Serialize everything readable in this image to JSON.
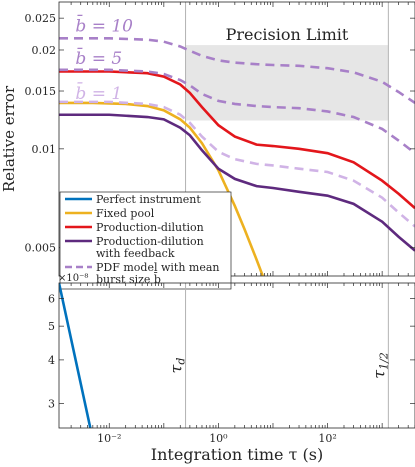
{
  "chart_data": [
    {
      "type": "line",
      "panel": "top",
      "xscale": "log",
      "yscale": "log",
      "xlim": [
        0.0012,
        4000
      ],
      "ylim": [
        0.0041,
        0.028
      ],
      "xticks": [
        0.01,
        1,
        100
      ],
      "xtick_labels": [
        "",
        "",
        ""
      ],
      "yticks": [
        0.005,
        0.01,
        0.015,
        0.02,
        0.025
      ],
      "ytick_labels": [
        "0.005",
        "0.01",
        "0.015",
        "0.02",
        "0.025"
      ],
      "ylabel": "Relative error",
      "xlabel": "",
      "grid": false,
      "vlines": [
        0.25,
        1300
      ],
      "shaded_region": {
        "label": "Precision Limit",
        "x": [
          0.25,
          1300
        ],
        "y": [
          0.0122,
          0.0207
        ]
      },
      "legend": {
        "position": "bottom-left",
        "entries": [
          {
            "label": "Perfect instrument",
            "color": "#0072bd",
            "style": "solid"
          },
          {
            "label": "Fixed pool",
            "color": "#edb120",
            "style": "solid"
          },
          {
            "label": "Production-dilution",
            "color": "#e3161b",
            "style": "solid"
          },
          {
            "label": "Production-dilution\nwith feedback",
            "color": "#5e2a7e",
            "style": "solid"
          },
          {
            "label": "PDF model with mean\nburst size b̄",
            "color": "#a880c8",
            "style": "dashed"
          }
        ]
      },
      "annotations": [
        {
          "text": "b̄ = 10",
          "x": 0.0024,
          "y": 0.0228,
          "color": "#a880c8"
        },
        {
          "text": "b̄ = 5",
          "x": 0.0024,
          "y": 0.0181,
          "color": "#a880c8"
        },
        {
          "text": "b̄ = 1",
          "x": 0.0024,
          "y": 0.0142,
          "color": "#d0b3e6"
        }
      ],
      "series": [
        {
          "name": "Fixed pool",
          "color": "#edb120",
          "style": "solid",
          "x": [
            0.0012,
            0.005,
            0.02,
            0.05,
            0.1,
            0.2,
            0.3,
            0.5,
            1,
            2,
            3,
            5,
            6.5
          ],
          "y": [
            0.0138,
            0.0138,
            0.0137,
            0.0135,
            0.0131,
            0.0123,
            0.0116,
            0.0104,
            0.0086,
            0.0067,
            0.0057,
            0.0046,
            0.0041
          ]
        },
        {
          "name": "Production-dilution",
          "color": "#e3161b",
          "style": "solid",
          "x": [
            0.0012,
            0.01,
            0.05,
            0.1,
            0.2,
            0.3,
            0.5,
            1,
            2,
            5,
            10,
            30,
            100,
            300,
            1000,
            2000,
            4000
          ],
          "y": [
            0.0172,
            0.0172,
            0.017,
            0.0166,
            0.0157,
            0.0148,
            0.0134,
            0.0118,
            0.0109,
            0.0103,
            0.0102,
            0.01,
            0.0097,
            0.0091,
            0.008,
            0.0073,
            0.0066
          ]
        },
        {
          "name": "Production-dilution with feedback",
          "color": "#5e2a7e",
          "style": "solid",
          "x": [
            0.0012,
            0.01,
            0.05,
            0.1,
            0.2,
            0.3,
            0.5,
            1,
            2,
            5,
            10,
            30,
            100,
            300,
            1000,
            2000,
            4000
          ],
          "y": [
            0.0127,
            0.0127,
            0.0125,
            0.0123,
            0.0116,
            0.011,
            0.0099,
            0.0087,
            0.0081,
            0.0077,
            0.0076,
            0.0074,
            0.0072,
            0.0068,
            0.006,
            0.0054,
            0.0049
          ]
        },
        {
          "name": "PDF b̄ = 10",
          "color": "#a880c8",
          "style": "dashed",
          "x": [
            0.0012,
            0.01,
            0.05,
            0.1,
            0.2,
            0.3,
            0.5,
            1,
            2,
            5,
            10,
            30,
            100,
            300,
            1000,
            2000,
            4000
          ],
          "y": [
            0.0217,
            0.0217,
            0.0215,
            0.0212,
            0.0205,
            0.0199,
            0.0192,
            0.0186,
            0.0183,
            0.0181,
            0.018,
            0.0179,
            0.0176,
            0.0171,
            0.016,
            0.0149,
            0.0138
          ]
        },
        {
          "name": "PDF b̄ = 5",
          "color": "#a880c8",
          "style": "dashed",
          "x": [
            0.0012,
            0.01,
            0.05,
            0.1,
            0.2,
            0.3,
            0.5,
            1,
            2,
            5,
            10,
            30,
            100,
            300,
            1000,
            2000,
            4000
          ],
          "y": [
            0.0174,
            0.0174,
            0.0172,
            0.0169,
            0.0162,
            0.0156,
            0.0147,
            0.014,
            0.0137,
            0.0135,
            0.0134,
            0.0133,
            0.013,
            0.0125,
            0.0115,
            0.0106,
            0.0097
          ]
        },
        {
          "name": "PDF b̄ = 1",
          "color": "#d0b3e6",
          "style": "dashed",
          "x": [
            0.0012,
            0.01,
            0.05,
            0.1,
            0.2,
            0.3,
            0.5,
            1,
            2,
            5,
            10,
            30,
            100,
            300,
            1000,
            2000,
            4000
          ],
          "y": [
            0.0139,
            0.0139,
            0.0137,
            0.0134,
            0.0127,
            0.012,
            0.0109,
            0.0098,
            0.0093,
            0.009,
            0.0089,
            0.0087,
            0.0085,
            0.008,
            0.0071,
            0.0064,
            0.0058
          ]
        }
      ]
    },
    {
      "type": "line",
      "panel": "bottom",
      "xscale": "log",
      "yscale": "log",
      "xlim": [
        0.0012,
        4000
      ],
      "ylim": [
        2.55e-08,
        6.65e-08
      ],
      "offset_text": "×10⁻⁸",
      "xticks": [
        0.01,
        1,
        100
      ],
      "xtick_labels": [
        "10⁻²",
        "10⁰",
        "10²"
      ],
      "yticks": [
        3e-08,
        4e-08,
        5e-08,
        6e-08
      ],
      "ytick_labels": [
        "3",
        "4",
        "5",
        "6"
      ],
      "xlabel": "Integration time τ (s)",
      "ylabel": "",
      "grid": false,
      "vlines": [
        0.25,
        1300
      ],
      "vline_labels": [
        "τd",
        "τ1/2"
      ],
      "series": [
        {
          "name": "Perfect instrument",
          "color": "#0072bd",
          "style": "solid",
          "x": [
            0.0012,
            0.0045
          ],
          "y": [
            6.65e-08,
            2.55e-08
          ]
        }
      ]
    }
  ]
}
